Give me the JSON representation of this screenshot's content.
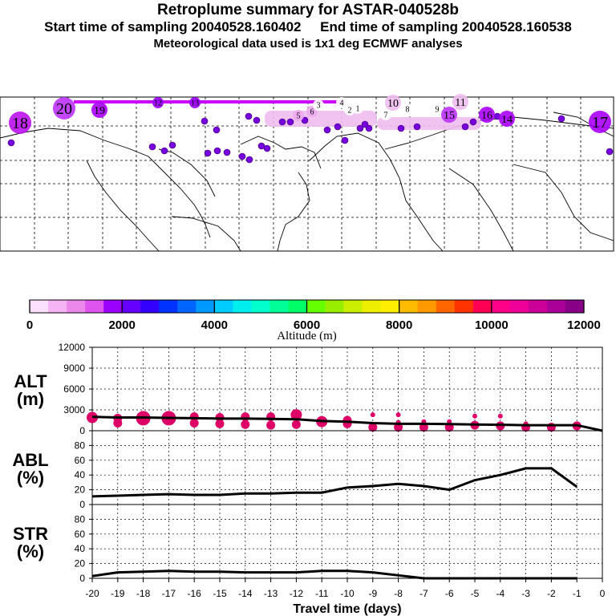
{
  "title": "Retroplume summary for ASTAR-040528b",
  "subtitle_start": "Start time of sampling 20040528.160402",
  "subtitle_end": "End time of sampling 20040528.160538",
  "met_info": "Meteorological data used is 1x1 deg ECMWF analyses",
  "colors": {
    "plume": "#dd0066",
    "line": "#000000",
    "scale": [
      "#fde0fd",
      "#f5b5f5",
      "#ec88ec",
      "#dd55ee",
      "#9a00ff",
      "#6600ff",
      "#3300ff",
      "#0033ff",
      "#0066ff",
      "#0099ff",
      "#00ccff",
      "#00eeee",
      "#00ffcc",
      "#00ff99",
      "#00ff66",
      "#66ff00",
      "#99ee00",
      "#ccee00",
      "#eeee00",
      "#ffee00",
      "#ffbb00",
      "#ff9900",
      "#ff6600",
      "#ff3300",
      "#ff0055",
      "#ff0088",
      "#ee0099",
      "#cc0099",
      "#aa0099",
      "#880088"
    ]
  },
  "chart_data": [
    {
      "type": "map",
      "labels": [
        {
          "text": "18",
          "size": "large"
        },
        {
          "text": "20",
          "size": "large"
        },
        {
          "text": "19",
          "size": "medium"
        },
        {
          "text": "13",
          "size": "small"
        },
        {
          "text": "12",
          "size": "small"
        },
        {
          "text": "10",
          "size": "medium"
        },
        {
          "text": "11",
          "size": "medium"
        },
        {
          "text": "9",
          "size": "small"
        },
        {
          "text": "8",
          "size": "small"
        },
        {
          "text": "7",
          "size": "small"
        },
        {
          "text": "6",
          "size": "small"
        },
        {
          "text": "5",
          "size": "small"
        },
        {
          "text": "4",
          "size": "small"
        },
        {
          "text": "3",
          "size": "small"
        },
        {
          "text": "2",
          "size": "small"
        },
        {
          "text": "1",
          "size": "small"
        },
        {
          "text": "14",
          "size": "medium"
        },
        {
          "text": "15",
          "size": "medium"
        },
        {
          "text": "16",
          "size": "medium"
        },
        {
          "text": "17",
          "size": "large"
        }
      ]
    },
    {
      "type": "colorbar",
      "title": "Altitude (m)",
      "range": [
        0,
        12000
      ],
      "tick_labels": [
        "0",
        "2000",
        "4000",
        "6000",
        "8000",
        "10000",
        "12000"
      ]
    },
    {
      "type": "scatter+line",
      "panel": "ALT",
      "ylabel": "ALT (m)",
      "label_main": "ALT",
      "label_unit": "(m)",
      "ylim": [
        0,
        12000
      ],
      "ytick_labels": [
        "0",
        "3000",
        "6000",
        "9000",
        "12000"
      ],
      "x": [
        -20,
        -19,
        -18,
        -17,
        -16,
        -15,
        -14,
        -13,
        -12,
        -11,
        -10,
        -9,
        -8,
        -7,
        -6,
        -5,
        -4,
        -3,
        -2,
        -1,
        0
      ],
      "line": [
        2000,
        1900,
        1900,
        1850,
        1800,
        1750,
        1750,
        1700,
        1650,
        1400,
        1300,
        1100,
        1000,
        1000,
        950,
        900,
        850,
        800,
        800,
        800,
        0
      ],
      "plume_points": [
        {
          "x": -20,
          "y": 1900,
          "r": "medium"
        },
        {
          "x": -19,
          "y": 1800,
          "r": "small"
        },
        {
          "x": -19,
          "y": 1100,
          "r": "small"
        },
        {
          "x": -18,
          "y": 1800,
          "r": "large"
        },
        {
          "x": -17,
          "y": 1800,
          "r": "large"
        },
        {
          "x": -16,
          "y": 2000,
          "r": "small"
        },
        {
          "x": -16,
          "y": 1100,
          "r": "small"
        },
        {
          "x": -15,
          "y": 1900,
          "r": "small"
        },
        {
          "x": -15,
          "y": 1000,
          "r": "small"
        },
        {
          "x": -14,
          "y": 2000,
          "r": "small"
        },
        {
          "x": -14,
          "y": 900,
          "r": "small"
        },
        {
          "x": -13,
          "y": 2000,
          "r": "small"
        },
        {
          "x": -13,
          "y": 800,
          "r": "small"
        },
        {
          "x": -12,
          "y": 2300,
          "r": "medium"
        },
        {
          "x": -12,
          "y": 900,
          "r": "small"
        },
        {
          "x": -11,
          "y": 1300,
          "r": "medium"
        },
        {
          "x": -10,
          "y": 1500,
          "r": "small"
        },
        {
          "x": -10,
          "y": 1000,
          "r": "small"
        },
        {
          "x": -9,
          "y": 2300,
          "r": "tiny"
        },
        {
          "x": -9,
          "y": 500,
          "r": "small"
        },
        {
          "x": -8,
          "y": 2300,
          "r": "tiny"
        },
        {
          "x": -8,
          "y": 1200,
          "r": "tiny"
        },
        {
          "x": -8,
          "y": 500,
          "r": "small"
        },
        {
          "x": -7,
          "y": 1300,
          "r": "tiny"
        },
        {
          "x": -7,
          "y": 500,
          "r": "small"
        },
        {
          "x": -6,
          "y": 1300,
          "r": "tiny"
        },
        {
          "x": -6,
          "y": 500,
          "r": "small"
        },
        {
          "x": -5,
          "y": 2100,
          "r": "tiny"
        },
        {
          "x": -5,
          "y": 800,
          "r": "small"
        },
        {
          "x": -4,
          "y": 2100,
          "r": "tiny"
        },
        {
          "x": -4,
          "y": 700,
          "r": "small"
        },
        {
          "x": -3,
          "y": 1000,
          "r": "tiny"
        },
        {
          "x": -3,
          "y": 500,
          "r": "small"
        },
        {
          "x": -2,
          "y": 500,
          "r": "small"
        },
        {
          "x": -1,
          "y": 700,
          "r": "small"
        }
      ]
    },
    {
      "type": "line",
      "panel": "ABL",
      "ylabel": "ABL (%)",
      "label_main": "ABL",
      "label_unit": "(%)",
      "ylim": [
        0,
        100
      ],
      "ytick_labels": [
        "0",
        "20",
        "40",
        "60",
        "80"
      ],
      "x": [
        -20,
        -19,
        -18,
        -17,
        -16,
        -15,
        -14,
        -13,
        -12,
        -11,
        -10,
        -9,
        -8,
        -7,
        -6,
        -5,
        -4,
        -3,
        -2,
        -1
      ],
      "y": [
        11,
        12,
        13,
        14,
        13,
        13,
        15,
        15,
        16,
        16,
        23,
        25,
        28,
        25,
        20,
        33,
        40,
        49,
        49,
        24
      ]
    },
    {
      "type": "line",
      "panel": "STR",
      "ylabel": "STR (%)",
      "label_main": "STR",
      "label_unit": "(%)",
      "ylim": [
        0,
        100
      ],
      "ytick_labels": [
        "0",
        "20",
        "40",
        "60",
        "80"
      ],
      "x": [
        -20,
        -19,
        -18,
        -17,
        -16,
        -15,
        -14,
        -13,
        -12,
        -11,
        -10,
        -9,
        -8,
        -7,
        -6,
        -5,
        -4,
        -3,
        -2,
        -1
      ],
      "y": [
        3,
        8,
        9,
        10,
        9,
        9,
        8,
        8,
        8,
        10,
        10,
        8,
        4,
        0,
        0,
        0,
        0,
        0,
        0,
        0
      ],
      "xlabel": "Travel time (days)",
      "xtick_labels": [
        "-20",
        "-19",
        "-18",
        "-17",
        "-16",
        "-15",
        "-14",
        "-13",
        "-12",
        "-11",
        "-10",
        "-9",
        "-8",
        "-7",
        "-6",
        "-5",
        "-4",
        "-3",
        "-2",
        "-1",
        "0"
      ]
    }
  ]
}
